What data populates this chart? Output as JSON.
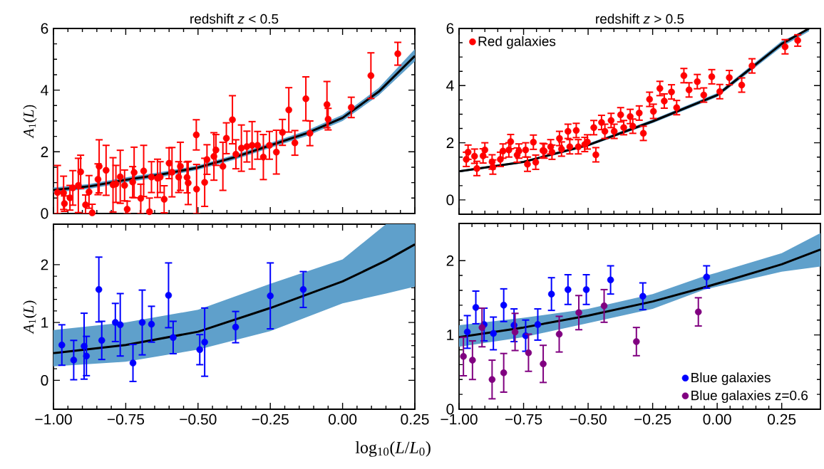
{
  "chart_data": [
    {
      "type": "scatter",
      "title": "redshift *z* < 0.5",
      "ylabel": "*A*$_{1}$(*L*)",
      "tick_labels": "y",
      "xlim": [
        -1.0,
        0.25
      ],
      "ylim": [
        0,
        6
      ],
      "xticks": [
        {
          "value": -1.0,
          "label": null
        },
        {
          "value": -0.75,
          "label": null
        },
        {
          "value": -0.5,
          "label": null
        },
        {
          "value": -0.25,
          "label": null
        },
        {
          "value": 0,
          "label": null
        },
        {
          "value": 0.25,
          "label": null
        }
      ],
      "yticks": [
        0,
        2,
        4,
        6
      ],
      "series": [
        {
          "type": "line",
          "marker": "none",
          "color": "#000000",
          "x": [
            -1.0,
            -0.875,
            -0.75,
            -0.625,
            -0.5,
            -0.375,
            -0.25,
            -0.125,
            0.0,
            0.125,
            0.25
          ],
          "values": [
            0.76,
            0.88,
            1.09,
            1.27,
            1.49,
            1.82,
            2.21,
            2.6,
            3.1,
            3.95,
            5.11
          ],
          "upper": [
            0.84,
            0.96,
            1.17,
            1.35,
            1.56,
            1.9,
            2.29,
            2.69,
            3.2,
            4.07,
            5.33
          ],
          "lower": [
            0.68,
            0.8,
            1.01,
            1.19,
            1.42,
            1.74,
            2.13,
            2.51,
            3.0,
            3.83,
            4.93
          ]
        },
        {
          "color": "#ff0000",
          "x": [
            -0.986,
            -0.965,
            -0.962,
            -0.933,
            -0.943,
            -0.914,
            -0.906,
            -0.889,
            -0.877,
            -0.866,
            -0.846,
            -0.842,
            -0.818,
            -0.794,
            -0.784,
            -0.769,
            -0.754,
            -0.745,
            -0.726,
            -0.721,
            -0.688,
            -0.698,
            -0.668,
            -0.661,
            -0.64,
            -0.631,
            -0.617,
            -0.6,
            -0.59,
            -0.567,
            -0.561,
            -0.538,
            -0.534,
            -0.506,
            -0.505,
            -0.477,
            -0.469,
            -0.445,
            -0.438,
            -0.414,
            -0.402,
            -0.381,
            -0.369,
            -0.35,
            -0.331,
            -0.313,
            -0.294,
            -0.274,
            -0.253,
            -0.229,
            -0.208,
            -0.186,
            -0.165,
            -0.127,
            -0.113,
            -0.054,
            -0.05,
            0.03,
            0.098,
            0.191
          ],
          "values": [
            0.68,
            0.67,
            0.32,
            0.83,
            0.51,
            0.91,
            1.35,
            0.28,
            0.7,
            0.02,
            1.11,
            1.53,
            1.4,
            0.93,
            0.96,
            1.19,
            0.91,
            0.14,
            1.02,
            1.33,
            1.38,
            0.49,
            0.06,
            1.18,
            1.14,
            1.18,
            0.46,
            1.63,
            1.34,
            1.18,
            1.53,
            1.17,
            0.99,
            2.55,
            0.79,
            1.01,
            1.75,
            1.85,
            2.06,
            1.53,
            2.44,
            3.04,
            1.92,
            2.12,
            2.17,
            2.21,
            2.21,
            1.83,
            2.21,
            1.99,
            2.63,
            3.36,
            2.29,
            3.72,
            2.6,
            3.53,
            3.06,
            3.44,
            4.47,
            5.18
          ],
          "errors": [
            [
              0,
              1.56
            ],
            0.54,
            0.25,
            0.56,
            0.4,
            0.88,
            0.54,
            [
              0,
              0.6
            ],
            0.53,
            [
              0,
              0.3
            ],
            0.5,
            0.86,
            0.81,
            0.88,
            0.6,
            0.86,
            0.5,
            [
              0,
              0.4
            ],
            0.5,
            0.82,
            0.83,
            [
              0,
              0.95
            ],
            [
              0,
              0.5
            ],
            0.5,
            0.62,
            0.5,
            [
              0.02,
              0.9
            ],
            0.5,
            0.8,
            0.5,
            0.78,
            0.5,
            0.7,
            0.49,
            [
              0,
              1.59
            ],
            0.78,
            0.48,
            0.77,
            0.5,
            0.78,
            0.5,
            0.78,
            0.47,
            0.75,
            0.5,
            0.77,
            0.45,
            0.73,
            0.45,
            0.71,
            0.42,
            0.72,
            0.4,
            0.71,
            0.4,
            0.75,
            0.35,
            0.33,
            0.74,
            0.37
          ]
        }
      ]
    },
    {
      "type": "scatter",
      "title": "redshift *z* > 0.5",
      "tick_labels": "y",
      "legend": "top left",
      "xlim": [
        -1.0,
        0.4
      ],
      "ylim": [
        -0.5,
        6
      ],
      "xticks": [
        {
          "value": -1.0,
          "label": null
        },
        {
          "value": -0.75,
          "label": null
        },
        {
          "value": -0.5,
          "label": null
        },
        {
          "value": -0.25,
          "label": null
        },
        {
          "value": 0,
          "label": null
        },
        {
          "value": 0.25,
          "label": null
        }
      ],
      "yticks": [
        0,
        2,
        4,
        6
      ],
      "series": [
        {
          "type": "line",
          "marker": "none",
          "color": "#000000",
          "x": [
            -1.0,
            -0.75,
            -0.5,
            -0.25,
            0.0,
            0.25,
            0.356
          ],
          "values": [
            1.0,
            1.33,
            1.92,
            2.75,
            3.67,
            5.46,
            6.0
          ],
          "upper": [
            1.04,
            1.37,
            1.97,
            2.81,
            3.74,
            5.56,
            6.0
          ],
          "lower": [
            0.96,
            1.29,
            1.87,
            2.69,
            3.6,
            5.36,
            5.9
          ]
        },
        {
          "name": "Red galaxies",
          "color": "#ff0000",
          "x": [
            -0.972,
            -0.965,
            -0.94,
            -0.931,
            -0.907,
            -0.9,
            -0.872,
            -0.869,
            -0.84,
            -0.83,
            -0.807,
            -0.8,
            -0.775,
            -0.768,
            -0.742,
            -0.735,
            -0.712,
            -0.703,
            -0.675,
            -0.67,
            -0.645,
            -0.64,
            -0.611,
            -0.603,
            -0.578,
            -0.571,
            -0.546,
            -0.538,
            -0.513,
            -0.503,
            -0.478,
            -0.47,
            -0.448,
            -0.435,
            -0.411,
            -0.399,
            -0.374,
            -0.362,
            -0.337,
            -0.327,
            -0.302,
            -0.286,
            -0.262,
            -0.247,
            -0.222,
            -0.205,
            -0.177,
            -0.157,
            -0.129,
            -0.109,
            -0.077,
            -0.052,
            -0.021,
            0.01,
            0.047,
            0.095,
            0.135,
            0.263,
            0.312
          ],
          "values": [
            1.42,
            1.67,
            1.53,
            1.1,
            1.54,
            1.75,
            1.33,
            1.15,
            1.42,
            1.71,
            1.75,
            2.04,
            1.57,
            1.71,
            1.75,
            1.25,
            2.02,
            1.32,
            1.73,
            1.71,
            1.86,
            1.67,
            2.15,
            1.78,
            2.4,
            1.86,
            2.43,
            1.86,
            1.94,
            2.03,
            2.53,
            1.58,
            2.71,
            2.4,
            2.78,
            2.4,
            2.98,
            2.53,
            2.92,
            2.58,
            3.04,
            2.33,
            3.52,
            3.1,
            3.9,
            3.46,
            3.78,
            3.23,
            4.35,
            3.85,
            4.14,
            3.67,
            4.31,
            3.79,
            4.28,
            4.02,
            4.69,
            5.36,
            5.58
          ],
          "errors": [
            0.25,
            0.25,
            0.25,
            0.25,
            0.25,
            0.25,
            0.25,
            0.25,
            0.25,
            0.25,
            0.25,
            0.25,
            0.25,
            0.25,
            0.25,
            0.25,
            0.25,
            0.25,
            0.25,
            0.25,
            0.25,
            0.25,
            0.25,
            0.25,
            0.25,
            0.25,
            0.25,
            0.25,
            0.25,
            0.25,
            0.25,
            0.25,
            0.25,
            0.25,
            0.25,
            0.25,
            0.25,
            0.25,
            0.25,
            0.25,
            0.25,
            0.25,
            0.25,
            0.25,
            0.25,
            0.25,
            0.25,
            0.25,
            0.25,
            0.25,
            0.25,
            0.25,
            0.25,
            0.25,
            0.25,
            0.25,
            0.25,
            0.25,
            0.2
          ]
        }
      ]
    },
    {
      "type": "scatter",
      "ylabel": "*A*$_{1}$(*L*)",
      "xlabel": "log$_{10}$(*L*/*L*$_{0}$)",
      "xlim": [
        -1.0,
        0.25
      ],
      "ylim": [
        -0.5,
        2.7
      ],
      "xticks": [
        {
          "value": -1.0,
          "label": "−1.00"
        },
        {
          "value": -0.75,
          "label": "−0.75"
        },
        {
          "value": -0.5,
          "label": "−0.50"
        },
        {
          "value": -0.25,
          "label": "−0.25"
        },
        {
          "value": 0,
          "label": "0.00"
        },
        {
          "value": 0.25,
          "label": "0.25"
        }
      ],
      "yticks": [
        0,
        1,
        2
      ],
      "series": [
        {
          "type": "line",
          "marker": "none",
          "color": "#000000",
          "x": [
            -1.0,
            -0.75,
            -0.5,
            -0.25,
            0.0,
            0.15,
            0.25
          ],
          "values": [
            0.47,
            0.61,
            0.84,
            1.25,
            1.71,
            2.07,
            2.35
          ],
          "upper": [
            0.87,
            1.0,
            1.22,
            1.67,
            2.09,
            2.7,
            2.7
          ],
          "lower": [
            0.24,
            0.32,
            0.53,
            0.85,
            1.33,
            1.5,
            1.62
          ]
        },
        {
          "color": "#0000ff",
          "x": [
            -0.971,
            -0.93,
            -0.894,
            -0.886,
            -0.843,
            -0.833,
            -0.786,
            -0.769,
            -0.725,
            -0.693,
            -0.661,
            -0.602,
            -0.586,
            -0.494,
            -0.477,
            -0.37,
            -0.25,
            -0.136
          ],
          "values": [
            0.61,
            0.35,
            0.59,
            0.42,
            1.57,
            0.69,
            1.0,
            0.96,
            0.3,
            1.0,
            0.97,
            1.47,
            0.74,
            0.53,
            0.66,
            0.92,
            1.46,
            1.57
          ],
          "errors": [
            0.35,
            0.34,
            0.57,
            0.34,
            0.56,
            0.33,
            0.33,
            0.54,
            0.32,
            0.56,
            0.31,
            0.56,
            0.28,
            0.26,
            0.59,
            0.27,
            0.57,
            0.31
          ]
        }
      ]
    },
    {
      "type": "scatter",
      "legend": "bottom right",
      "xlim": [
        -1.0,
        0.4
      ],
      "ylim": [
        0,
        2.5
      ],
      "xticks": [
        {
          "value": -1.0,
          "label": "−1.00"
        },
        {
          "value": -0.75,
          "label": "−0.75"
        },
        {
          "value": -0.5,
          "label": "−0.50"
        },
        {
          "value": -0.25,
          "label": "−0.25"
        },
        {
          "value": 0,
          "label": "0.00"
        },
        {
          "value": 0.25,
          "label": "0.25"
        }
      ],
      "yticks": [
        0,
        1,
        2
      ],
      "series": [
        {
          "type": "line",
          "marker": "none",
          "color": "#000000",
          "x": [
            -1.0,
            -0.75,
            -0.5,
            -0.25,
            -0.05,
            0.0,
            0.25,
            0.4
          ],
          "values": [
            0.97,
            1.1,
            1.26,
            1.45,
            1.64,
            1.69,
            1.95,
            2.15
          ],
          "upper": [
            1.13,
            1.23,
            1.35,
            1.55,
            1.79,
            1.84,
            2.1,
            2.37
          ],
          "lower": [
            0.84,
            0.97,
            1.16,
            1.35,
            1.61,
            1.65,
            1.85,
            1.92
          ]
        },
        {
          "name": "Blue galaxies",
          "color": "#0000ff",
          "x": [
            -0.968,
            -0.935,
            -0.903,
            -0.867,
            -0.827,
            -0.787,
            -0.742,
            -0.695,
            -0.642,
            -0.578,
            -0.507,
            -0.413,
            -0.288,
            -0.041
          ],
          "values": [
            1.04,
            1.37,
            1.14,
            1.02,
            1.4,
            1.13,
            0.99,
            1.14,
            1.55,
            1.61,
            1.61,
            1.74,
            1.52,
            1.78
          ],
          "errors": [
            0.22,
            0.22,
            0.22,
            0.22,
            0.22,
            0.22,
            0.21,
            0.21,
            0.22,
            0.2,
            0.2,
            0.19,
            0.18,
            0.15
          ]
        },
        {
          "name": "Blue galaxies z=0.6",
          "color": "#800080",
          "x": [
            -0.983,
            -0.948,
            -0.911,
            -0.872,
            -0.827,
            -0.783,
            -0.731,
            -0.674,
            -0.612,
            -0.536,
            -0.438,
            -0.313,
            -0.073
          ],
          "values": [
            0.71,
            0.66,
            1.1,
            0.4,
            0.49,
            1.04,
            0.76,
            0.61,
            1.01,
            1.3,
            1.39,
            0.91,
            1.31
          ],
          "errors": [
            0.26,
            0.26,
            0.26,
            0.26,
            0.26,
            0.25,
            0.25,
            0.25,
            0.24,
            0.23,
            0.22,
            0.19,
            0.19
          ]
        }
      ]
    }
  ]
}
